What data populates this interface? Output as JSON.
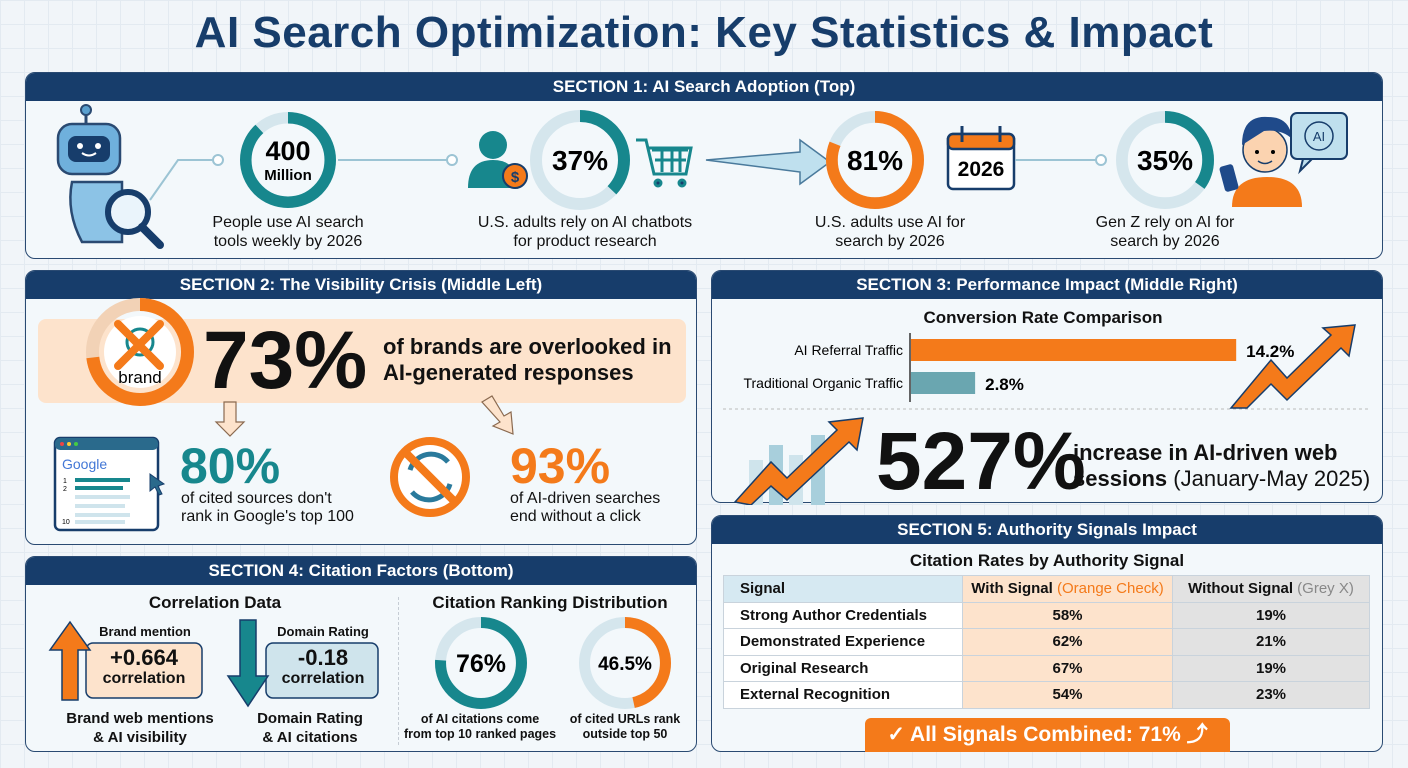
{
  "title": "AI Search Optimization: Key Statistics & Impact",
  "colors": {
    "navy": "#173d6b",
    "teal": "#17878d",
    "orange": "#f47a1a",
    "peach": "#fde3cc",
    "light_blue": "#cfe4ec",
    "grey": "#e2e2e2"
  },
  "section1": {
    "header": "SECTION 1: AI Search Adoption (Top)",
    "stats": [
      {
        "value": "400",
        "unit": "Million",
        "label1": "People use AI search",
        "label2": "tools weekly by 2026",
        "ring_fill": 0.88,
        "color": "teal"
      },
      {
        "value": "37%",
        "label1": "U.S. adults rely on AI chatbots",
        "label2": "for product research",
        "ring_fill": 0.37,
        "color": "teal"
      },
      {
        "value": "81%",
        "label1": "U.S. adults use AI for",
        "label2": "search by 2026",
        "ring_fill": 0.81,
        "color": "orange"
      },
      {
        "value": "35%",
        "label1": "Gen Z rely on AI for",
        "label2": "search by 2026",
        "ring_fill": 0.35,
        "color": "teal"
      }
    ],
    "calendar_year": "2026",
    "ai_bubble": "AI",
    "dollar": "$"
  },
  "section2": {
    "header": "SECTION 2: The Visibility Crisis (Middle Left)",
    "brand_word": "brand",
    "brand_ring_fill": 0.73,
    "main_value": "73%",
    "main_text1": "of brands are overlooked in",
    "main_text2": "AI-generated responses",
    "google": {
      "logo": "Google",
      "ranks": [
        "1",
        "2",
        "10"
      ]
    },
    "stat_a": {
      "value": "80%",
      "text1": "of cited sources don't",
      "text2": "rank in Google's top 100"
    },
    "stat_b": {
      "value": "93%",
      "text1": "of AI-driven searches",
      "text2": "end without a click"
    }
  },
  "section3": {
    "header": "SECTION 3: Performance Impact (Middle Right)",
    "chart_title": "Conversion Rate Comparison",
    "bars": [
      {
        "label": "AI Referral Traffic",
        "value": 14.2,
        "display": "14.2%",
        "color": "orange"
      },
      {
        "label": "Traditional Organic Traffic",
        "value": 2.8,
        "display": "2.8%",
        "color": "teal"
      }
    ],
    "big_value": "527%",
    "big_text1": "increase in AI-driven web",
    "big_text2": "sessions",
    "big_text_note": "(January-May 2025)"
  },
  "section4": {
    "header": "SECTION 4: Citation Factors (Bottom)",
    "corr_title": "Correlation Data",
    "corr": [
      {
        "tag": "Brand mention",
        "value": "+0.664",
        "unit": "correlation",
        "label1": "Brand web mentions",
        "label2": "& AI visibility"
      },
      {
        "tag": "Domain Rating",
        "value": "-0.18",
        "unit": "correlation",
        "label1": "Domain Rating",
        "label2": "& AI citations"
      }
    ],
    "dist_title": "Citation Ranking Distribution",
    "dist": [
      {
        "value": "76%",
        "ring_fill": 0.76,
        "color": "teal",
        "label1": "of AI citations come",
        "label2": "from top 10 ranked pages"
      },
      {
        "value": "46.5%",
        "ring_fill": 0.465,
        "color": "orange",
        "label1": "of cited URLs rank",
        "label2": "outside top 50"
      }
    ]
  },
  "section5": {
    "header": "SECTION 5: Authority Signals Impact",
    "table_title": "Citation Rates by Authority Signal",
    "columns": {
      "signal": "Signal",
      "with": "With Signal",
      "with_note": "(Orange Check)",
      "without": "Without Signal",
      "without_note": "(Grey X)"
    },
    "rows": [
      {
        "signal": "Strong Author Credentials",
        "with": "58%",
        "without": "19%"
      },
      {
        "signal": "Demonstrated Experience",
        "with": "62%",
        "without": "21%"
      },
      {
        "signal": "Original Research",
        "with": "67%",
        "without": "19%"
      },
      {
        "signal": "External Recognition",
        "with": "54%",
        "without": "23%"
      }
    ],
    "combined": "All Signals Combined: 71%"
  }
}
